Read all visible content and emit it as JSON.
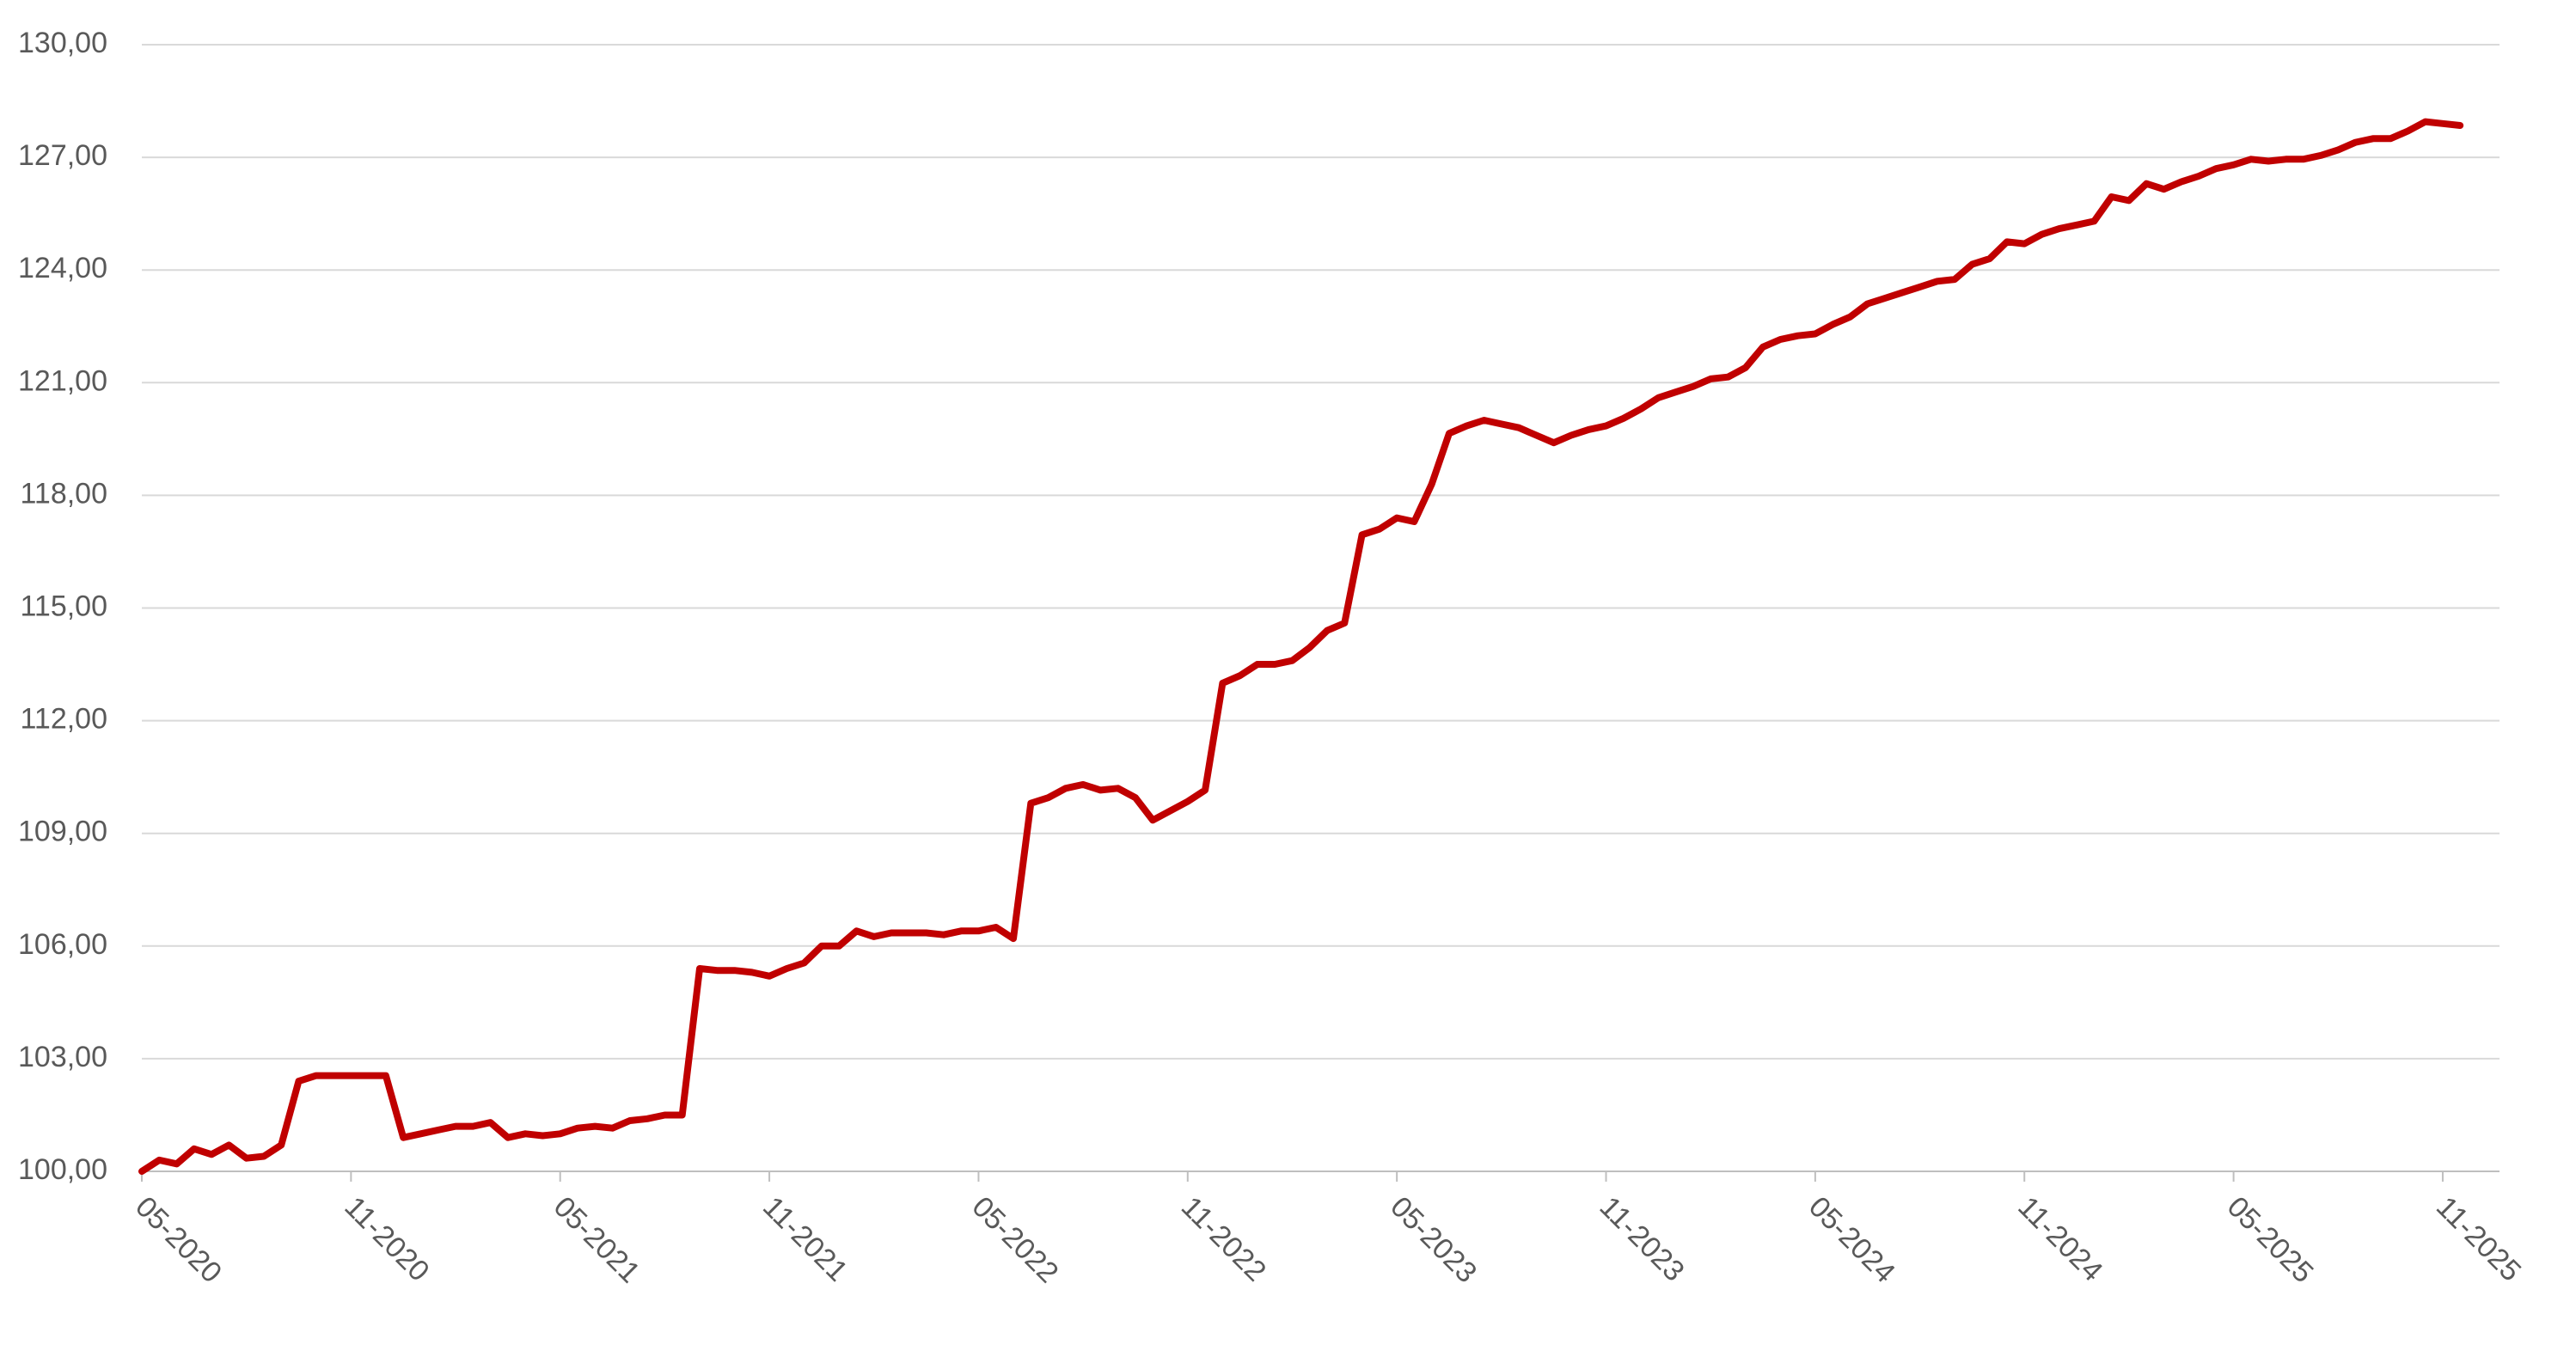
{
  "chart_data": {
    "type": "line",
    "categories": [
      "05-2020",
      null,
      null,
      null,
      null,
      null,
      null,
      null,
      null,
      null,
      null,
      null,
      "11-2020",
      null,
      null,
      null,
      null,
      null,
      null,
      null,
      null,
      null,
      null,
      null,
      "05-2021",
      null,
      null,
      null,
      null,
      null,
      null,
      null,
      null,
      null,
      null,
      null,
      "11-2021",
      null,
      null,
      null,
      null,
      null,
      null,
      null,
      null,
      null,
      null,
      null,
      "05-2022",
      null,
      null,
      null,
      null,
      null,
      null,
      null,
      null,
      null,
      null,
      null,
      "11-2022",
      null,
      null,
      null,
      null,
      null,
      null,
      null,
      null,
      null,
      null,
      null,
      "05-2023",
      null,
      null,
      null,
      null,
      null,
      null,
      null,
      null,
      null,
      null,
      null,
      "11-2023",
      null,
      null,
      null,
      null,
      null,
      null,
      null,
      null,
      null,
      null,
      null,
      "05-2024",
      null,
      null,
      null,
      null,
      null,
      null,
      null,
      null,
      null,
      null,
      null,
      "11-2024",
      null,
      null,
      null,
      null,
      null,
      null,
      null,
      null,
      null,
      null,
      null,
      "05-2025",
      null,
      null,
      null,
      null,
      null,
      null,
      null,
      null,
      null,
      null,
      null,
      "11-2025",
      null
    ],
    "series": [
      {
        "color": "#c00000",
        "values": [
          100.0,
          100.3,
          100.2,
          100.6,
          100.45,
          100.7,
          100.35,
          100.4,
          100.7,
          102.4,
          102.55,
          102.55,
          102.55,
          102.55,
          102.55,
          100.9,
          101.0,
          101.1,
          101.2,
          101.2,
          101.3,
          100.9,
          101.0,
          100.95,
          101.0,
          101.15,
          101.2,
          101.15,
          101.35,
          101.4,
          101.5,
          101.5,
          105.4,
          105.35,
          105.35,
          105.3,
          105.2,
          105.4,
          105.55,
          106.0,
          106.0,
          106.4,
          106.25,
          106.35,
          106.35,
          106.35,
          106.3,
          106.4,
          106.4,
          106.5,
          106.2,
          109.8,
          109.95,
          110.2,
          110.3,
          110.15,
          110.2,
          109.95,
          109.35,
          109.6,
          109.85,
          110.15,
          113.0,
          113.2,
          113.5,
          113.5,
          113.6,
          113.95,
          114.4,
          114.6,
          116.95,
          117.1,
          117.4,
          117.3,
          118.3,
          119.65,
          119.85,
          120.0,
          119.9,
          119.8,
          119.6,
          119.4,
          119.6,
          119.75,
          119.85,
          120.05,
          120.3,
          120.6,
          120.75,
          120.9,
          121.1,
          121.15,
          121.4,
          121.95,
          122.15,
          122.25,
          122.3,
          122.55,
          122.75,
          123.1,
          123.25,
          123.4,
          123.55,
          123.7,
          123.75,
          124.15,
          124.3,
          124.75,
          124.7,
          124.95,
          125.1,
          125.2,
          125.3,
          125.95,
          125.85,
          126.3,
          126.15,
          126.35,
          126.5,
          126.7,
          126.8,
          126.95,
          126.9,
          126.95,
          126.95,
          127.05,
          127.2,
          127.4,
          127.5,
          127.5,
          127.7,
          127.95,
          127.9,
          127.85
        ]
      }
    ],
    "ylim": [
      100,
      130
    ],
    "yticks": [
      {
        "value": 100,
        "label": "100,00"
      },
      {
        "value": 103,
        "label": "103,00"
      },
      {
        "value": 106,
        "label": "106,00"
      },
      {
        "value": 109,
        "label": "109,00"
      },
      {
        "value": 112,
        "label": "112,00"
      },
      {
        "value": 115,
        "label": "115,00"
      },
      {
        "value": 118,
        "label": "118,00"
      },
      {
        "value": 121,
        "label": "121,00"
      },
      {
        "value": 124,
        "label": "124,00"
      },
      {
        "value": 127,
        "label": "127,00"
      },
      {
        "value": 130,
        "label": "130,00"
      }
    ],
    "grid": true
  }
}
